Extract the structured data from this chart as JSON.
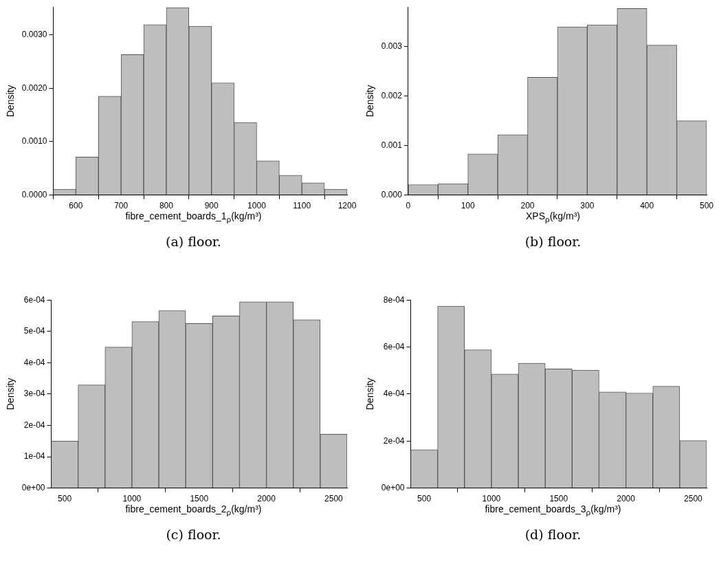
{
  "chart_data": [
    {
      "type": "histogram",
      "xlabel": "fibre_cement_boards_1$_{ρ}$(kg/m³)",
      "ylabel": "Density",
      "annotations": [
        "(a) floor."
      ],
      "color": "#bebebe",
      "bins": [
        550,
        600,
        650,
        700,
        750,
        800,
        850,
        900,
        950,
        1000,
        1050,
        1100,
        1150,
        1200
      ],
      "values": [
        0.00011,
        0.00071,
        0.00185,
        0.00263,
        0.00319,
        0.00351,
        0.00316,
        0.0021,
        0.00136,
        0.00064,
        0.00037,
        0.00023,
        0.00011
      ],
      "xlim": [
        550,
        1200
      ],
      "xticks": [
        600,
        700,
        800,
        900,
        1000,
        1100,
        1200
      ],
      "ylim": [
        0,
        0.00352
      ],
      "yticks": [
        {
          "value": 0,
          "label": "0.0000"
        },
        {
          "value": 0.001,
          "label": "0.0010"
        },
        {
          "value": 0.002,
          "label": "0.0020"
        },
        {
          "value": 0.003,
          "label": "0.0030"
        }
      ],
      "grid": false,
      "legend": false
    },
    {
      "type": "histogram",
      "xlabel": "XPS$_{ρ}$(kg/m³)",
      "ylabel": "Density",
      "annotations": [
        "(b) floor."
      ],
      "color": "#bebebe",
      "bins": [
        0,
        50,
        100,
        150,
        200,
        250,
        300,
        350,
        400,
        450,
        500
      ],
      "values": [
        0.00021,
        0.00023,
        0.00083,
        0.00122,
        0.00238,
        0.0034,
        0.00344,
        0.00377,
        0.00303,
        0.0015
      ],
      "xlim": [
        0,
        500
      ],
      "xticks": [
        0,
        100,
        200,
        300,
        400,
        500
      ],
      "ylim": [
        0,
        0.0038
      ],
      "yticks": [
        {
          "value": 0,
          "label": "0.000"
        },
        0.001,
        0.002,
        0.003
      ],
      "grid": false,
      "legend": false
    },
    {
      "type": "histogram",
      "xlabel": "fibre_cement_boards_2$_{ρ}$(kg/m³)",
      "ylabel": "Density",
      "annotations": [
        "(c) floor."
      ],
      "color": "#bebebe",
      "bins": [
        400,
        600,
        800,
        1000,
        1200,
        1400,
        1600,
        1800,
        2000,
        2200,
        2400,
        2600
      ],
      "values": [
        0.00015,
        0.000329,
        0.00045,
        0.000531,
        0.000566,
        0.000525,
        0.000549,
        0.000594,
        0.000594,
        0.000537,
        0.000172
      ],
      "xlim": [
        400,
        2600
      ],
      "xticks": [
        500,
        1000,
        1500,
        2000,
        2500
      ],
      "ylim": [
        0,
        0.0006
      ],
      "yticks": [
        {
          "value": 0,
          "label": "0e+00"
        },
        {
          "value": 0.0001,
          "label": "1e-04"
        },
        {
          "value": 0.0002,
          "label": "2e-04"
        },
        {
          "value": 0.0003,
          "label": "3e-04"
        },
        {
          "value": 0.0004,
          "label": "4e-04"
        },
        {
          "value": 0.0005,
          "label": "5e-04"
        },
        {
          "value": 0.0006,
          "label": "6e-04"
        }
      ],
      "grid": false,
      "legend": false
    },
    {
      "type": "histogram",
      "xlabel": "fibre_cement_boards_3$_{ρ}$(kg/m³)",
      "ylabel": "Density",
      "annotations": [
        "(d) floor."
      ],
      "color": "#bebebe",
      "bins": [
        400,
        600,
        800,
        1000,
        1200,
        1400,
        1600,
        1800,
        2000,
        2200,
        2400,
        2600
      ],
      "values": [
        0.000163,
        0.000774,
        0.000588,
        0.000485,
        0.000531,
        0.000507,
        0.000502,
        0.000409,
        0.000404,
        0.000433,
        0.000202
      ],
      "xlim": [
        400,
        2600
      ],
      "xticks": [
        500,
        1000,
        1500,
        2000,
        2500
      ],
      "ylim": [
        0,
        0.0008
      ],
      "yticks": [
        {
          "value": 0,
          "label": "0e+00"
        },
        {
          "value": 0.0002,
          "label": "2e-04"
        },
        {
          "value": 0.0004,
          "label": "4e-04"
        },
        {
          "value": 0.0006,
          "label": "6e-04"
        },
        {
          "value": 0.0008,
          "label": "8e-04"
        }
      ],
      "grid": false,
      "legend": false
    }
  ]
}
